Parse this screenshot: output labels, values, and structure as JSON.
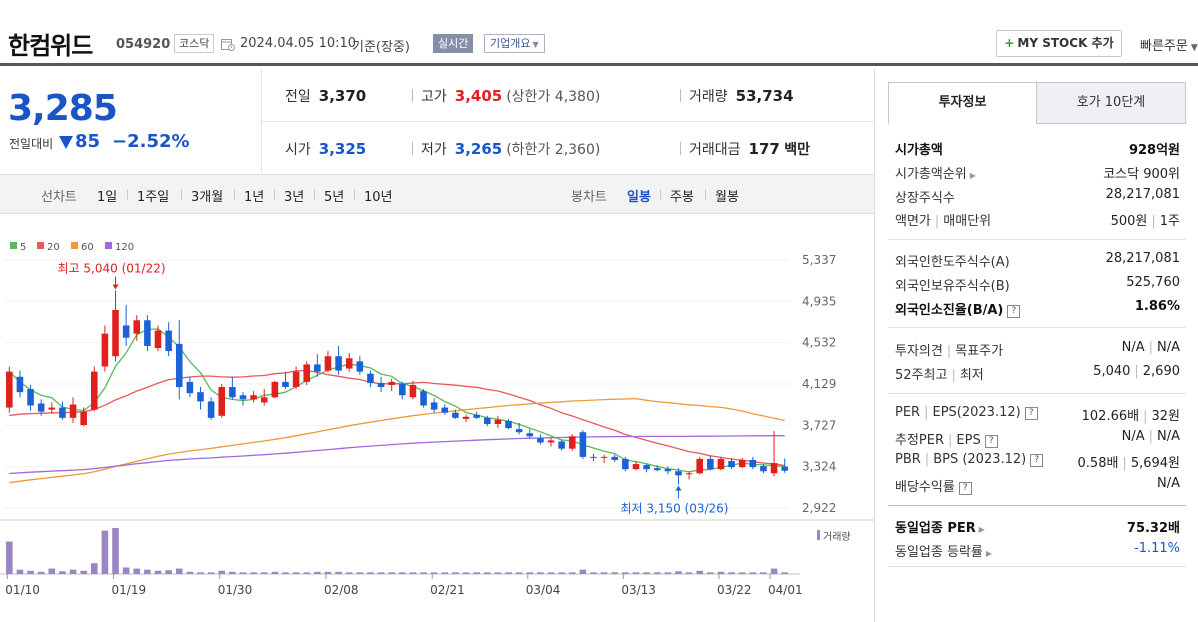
{
  "header": {
    "stock_name": "한컴위드",
    "stock_code": "054920",
    "market": "코스닥",
    "date": "2024.04.05 10:10",
    "basis": "기준(장중)",
    "realtime_badge": "실시간",
    "company_btn": "기업개요",
    "mystock_btn": "MY STOCK 추가",
    "quick_order": "빠른주문"
  },
  "price": {
    "current": "3,285",
    "change_label": "전일대비",
    "change": "85",
    "change_pct": "−2.52%",
    "color": "#1a55c7"
  },
  "quotes": {
    "prev_label": "전일",
    "prev": "3,370",
    "high_label": "고가",
    "high": "3,405",
    "upper_label": "(상한가",
    "upper": "4,380)",
    "volume_label": "거래량",
    "volume": "53,734",
    "open_label": "시가",
    "open": "3,325",
    "low_label": "저가",
    "low": "3,265",
    "lower_label": "(하한가",
    "lower": "2,360)",
    "amount_label": "거래대금",
    "amount": "177",
    "amount_unit": "백만"
  },
  "periods": {
    "line_label": "선차트",
    "line_items": [
      "1일",
      "1주일",
      "3개월",
      "1년",
      "3년",
      "5년",
      "10년"
    ],
    "candle_label": "봉차트",
    "candle_items": [
      "일봉",
      "주봉",
      "월봉"
    ],
    "candle_selected": "일봉"
  },
  "chart_data": {
    "type": "candlestick",
    "legend": [
      {
        "name": "5",
        "color": "#5cb85c"
      },
      {
        "name": "20",
        "color": "#e8595b"
      },
      {
        "name": "60",
        "color": "#f0983a"
      },
      {
        "name": "120",
        "color": "#a26ad8"
      }
    ],
    "y_ticks": [
      "5,337",
      "4,935",
      "4,532",
      "4,129",
      "3,727",
      "3,324",
      "2,922"
    ],
    "ylim": [
      2922,
      5337
    ],
    "x_ticks": [
      "01/10",
      "01/19",
      "01/30",
      "02/08",
      "02/21",
      "03/04",
      "03/13",
      "03/22",
      "04/01"
    ],
    "high_note": "최고 5,040 (01/22)",
    "low_note": "최저 3,150 (03/26)",
    "volume_label": "거래량",
    "up_color": "#e0201d",
    "down_color": "#1a62d6",
    "candles": [
      {
        "o": 3900,
        "h": 4300,
        "l": 3850,
        "c": 4250
      },
      {
        "o": 4200,
        "h": 4260,
        "l": 4000,
        "c": 4050
      },
      {
        "o": 4080,
        "h": 4120,
        "l": 3870,
        "c": 3920
      },
      {
        "o": 3940,
        "h": 3980,
        "l": 3820,
        "c": 3860
      },
      {
        "o": 3880,
        "h": 3950,
        "l": 3840,
        "c": 3900
      },
      {
        "o": 3900,
        "h": 3960,
        "l": 3780,
        "c": 3800
      },
      {
        "o": 3800,
        "h": 4000,
        "l": 3750,
        "c": 3930
      },
      {
        "o": 3730,
        "h": 3900,
        "l": 3720,
        "c": 3860
      },
      {
        "o": 3880,
        "h": 4300,
        "l": 3870,
        "c": 4250
      },
      {
        "o": 4300,
        "h": 4700,
        "l": 4250,
        "c": 4620
      },
      {
        "o": 4400,
        "h": 5040,
        "l": 4350,
        "c": 4850
      },
      {
        "o": 4700,
        "h": 4900,
        "l": 4500,
        "c": 4580
      },
      {
        "o": 4620,
        "h": 4800,
        "l": 4550,
        "c": 4750
      },
      {
        "o": 4750,
        "h": 4800,
        "l": 4450,
        "c": 4500
      },
      {
        "o": 4480,
        "h": 4700,
        "l": 4450,
        "c": 4650
      },
      {
        "o": 4650,
        "h": 4730,
        "l": 4400,
        "c": 4450
      },
      {
        "o": 4520,
        "h": 4750,
        "l": 3980,
        "c": 4100
      },
      {
        "o": 4150,
        "h": 4200,
        "l": 4000,
        "c": 4040
      },
      {
        "o": 4050,
        "h": 4100,
        "l": 3880,
        "c": 3960
      },
      {
        "o": 3960,
        "h": 4000,
        "l": 3780,
        "c": 3800
      },
      {
        "o": 3820,
        "h": 4130,
        "l": 3800,
        "c": 4100
      },
      {
        "o": 4100,
        "h": 4200,
        "l": 3980,
        "c": 4000
      },
      {
        "o": 4020,
        "h": 4050,
        "l": 3920,
        "c": 3980
      },
      {
        "o": 3980,
        "h": 4060,
        "l": 3950,
        "c": 4020
      },
      {
        "o": 3950,
        "h": 4080,
        "l": 3920,
        "c": 4000
      },
      {
        "o": 4000,
        "h": 4160,
        "l": 3990,
        "c": 4150
      },
      {
        "o": 4150,
        "h": 4250,
        "l": 4080,
        "c": 4100
      },
      {
        "o": 4100,
        "h": 4300,
        "l": 4080,
        "c": 4250
      },
      {
        "o": 4150,
        "h": 4350,
        "l": 4120,
        "c": 4320
      },
      {
        "o": 4320,
        "h": 4420,
        "l": 4200,
        "c": 4250
      },
      {
        "o": 4260,
        "h": 4450,
        "l": 4240,
        "c": 4400
      },
      {
        "o": 4400,
        "h": 4500,
        "l": 4220,
        "c": 4260
      },
      {
        "o": 4280,
        "h": 4430,
        "l": 4250,
        "c": 4380
      },
      {
        "o": 4350,
        "h": 4400,
        "l": 4220,
        "c": 4250
      },
      {
        "o": 4230,
        "h": 4260,
        "l": 4100,
        "c": 4140
      },
      {
        "o": 4140,
        "h": 4200,
        "l": 4050,
        "c": 4100
      },
      {
        "o": 4120,
        "h": 4180,
        "l": 4060,
        "c": 4150
      },
      {
        "o": 4130,
        "h": 4150,
        "l": 3980,
        "c": 4020
      },
      {
        "o": 4000,
        "h": 4160,
        "l": 3980,
        "c": 4120
      },
      {
        "o": 4060,
        "h": 4080,
        "l": 3900,
        "c": 3920
      },
      {
        "o": 3950,
        "h": 3990,
        "l": 3850,
        "c": 3880
      },
      {
        "o": 3900,
        "h": 3930,
        "l": 3830,
        "c": 3850
      },
      {
        "o": 3850,
        "h": 3880,
        "l": 3790,
        "c": 3800
      },
      {
        "o": 3790,
        "h": 3830,
        "l": 3760,
        "c": 3810
      },
      {
        "o": 3830,
        "h": 3860,
        "l": 3790,
        "c": 3800
      },
      {
        "o": 3800,
        "h": 3820,
        "l": 3720,
        "c": 3740
      },
      {
        "o": 3740,
        "h": 3820,
        "l": 3700,
        "c": 3780
      },
      {
        "o": 3770,
        "h": 3790,
        "l": 3690,
        "c": 3700
      },
      {
        "o": 3690,
        "h": 3750,
        "l": 3640,
        "c": 3660
      },
      {
        "o": 3650,
        "h": 3690,
        "l": 3600,
        "c": 3620
      },
      {
        "o": 3600,
        "h": 3640,
        "l": 3540,
        "c": 3560
      },
      {
        "o": 3560,
        "h": 3600,
        "l": 3520,
        "c": 3580
      },
      {
        "o": 3570,
        "h": 3590,
        "l": 3480,
        "c": 3500
      },
      {
        "o": 3500,
        "h": 3640,
        "l": 3480,
        "c": 3620
      },
      {
        "o": 3660,
        "h": 3680,
        "l": 3400,
        "c": 3420
      },
      {
        "o": 3420,
        "h": 3450,
        "l": 3380,
        "c": 3410
      },
      {
        "o": 3410,
        "h": 3440,
        "l": 3360,
        "c": 3420
      },
      {
        "o": 3420,
        "h": 3440,
        "l": 3370,
        "c": 3390
      },
      {
        "o": 3400,
        "h": 3420,
        "l": 3280,
        "c": 3300
      },
      {
        "o": 3300,
        "h": 3380,
        "l": 3290,
        "c": 3350
      },
      {
        "o": 3340,
        "h": 3350,
        "l": 3270,
        "c": 3300
      },
      {
        "o": 3310,
        "h": 3340,
        "l": 3280,
        "c": 3290
      },
      {
        "o": 3300,
        "h": 3330,
        "l": 3250,
        "c": 3280
      },
      {
        "o": 3280,
        "h": 3310,
        "l": 3150,
        "c": 3240
      },
      {
        "o": 3250,
        "h": 3280,
        "l": 3200,
        "c": 3260
      },
      {
        "o": 3260,
        "h": 3420,
        "l": 3250,
        "c": 3400
      },
      {
        "o": 3400,
        "h": 3430,
        "l": 3290,
        "c": 3300
      },
      {
        "o": 3300,
        "h": 3420,
        "l": 3290,
        "c": 3400
      },
      {
        "o": 3380,
        "h": 3410,
        "l": 3300,
        "c": 3320
      },
      {
        "o": 3320,
        "h": 3410,
        "l": 3310,
        "c": 3390
      },
      {
        "o": 3390,
        "h": 3420,
        "l": 3300,
        "c": 3320
      },
      {
        "o": 3330,
        "h": 3350,
        "l": 3260,
        "c": 3280
      },
      {
        "o": 3260,
        "h": 3670,
        "l": 3230,
        "c": 3360
      },
      {
        "o": 3325,
        "h": 3405,
        "l": 3265,
        "c": 3285
      }
    ],
    "volume": [
      60,
      8,
      6,
      4,
      10,
      5,
      8,
      6,
      20,
      80,
      85,
      12,
      10,
      8,
      6,
      7,
      10,
      4,
      3,
      3,
      6,
      4,
      3,
      3,
      3,
      4,
      3,
      3,
      3,
      4,
      4,
      4,
      3,
      3,
      3,
      3,
      3,
      3,
      3,
      3,
      3,
      3,
      3,
      3,
      3,
      3,
      3,
      3,
      3,
      3,
      3,
      3,
      3,
      3,
      8,
      3,
      3,
      3,
      3,
      3,
      3,
      3,
      3,
      5,
      3,
      6,
      3,
      4,
      3,
      3,
      3,
      3,
      10,
      3
    ]
  },
  "right_panel": {
    "tab_invest": "투자정보",
    "tab_quote": "호가 10단계",
    "market_cap_label": "시가총액",
    "market_cap": "928억원",
    "cap_rank_label": "시가총액순위",
    "cap_rank": "코스닥 900위",
    "shares_label": "상장주식수",
    "shares": "28,217,081",
    "face_label": "액면가",
    "unit_label": "매매단위",
    "face": "500원",
    "unit": "1주",
    "foreign_limit_label": "외국인한도주식수(A)",
    "foreign_limit": "28,217,081",
    "foreign_hold_label": "외국인보유주식수(B)",
    "foreign_hold": "525,760",
    "foreign_ratio_label": "외국인소진율(B/A)",
    "foreign_ratio": "1.86%",
    "opinion_label": "투자의견",
    "target_label": "목표주가",
    "opinion": "N/A",
    "target": "N/A",
    "w52_high_label": "52주최고",
    "w52_low_label": "최저",
    "w52_high": "5,040",
    "w52_low": "2,690",
    "per_label": "PER",
    "eps_label": "EPS(2023.12)",
    "per": "102.66배",
    "eps": "32원",
    "est_per_label": "추정PER",
    "est_eps_label": "EPS",
    "est_per": "N/A",
    "est_eps": "N/A",
    "pbr_label": "PBR",
    "bps_label": "BPS (2023.12)",
    "pbr": "0.58배",
    "bps": "5,694원",
    "div_label": "배당수익률",
    "div": "N/A",
    "ind_per_label": "동일업종 PER",
    "ind_per": "75.32배",
    "ind_rate_label": "동일업종 등락률",
    "ind_rate": "-1.11%"
  }
}
